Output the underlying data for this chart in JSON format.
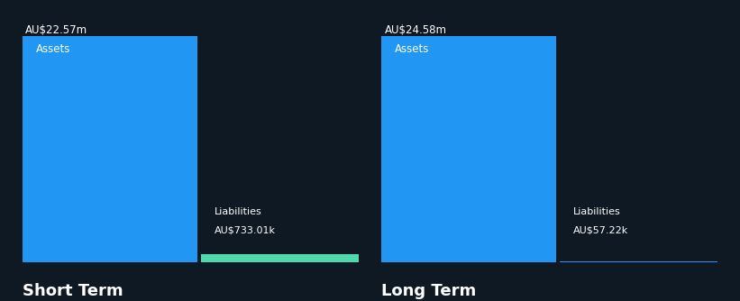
{
  "background_color": "#0f1923",
  "text_color": "#ffffff",
  "sections": [
    {
      "label": "Short Term",
      "assets_value": 22.57,
      "assets_label": "AU$22.57m",
      "assets_color": "#2196F3",
      "liabilities_value": 0.73301,
      "liabilities_label": "AU$733.01k",
      "liabilities_color": "#4dd9ac"
    },
    {
      "label": "Long Term",
      "assets_value": 24.58,
      "assets_label": "AU$24.58m",
      "assets_color": "#2196F3",
      "liabilities_value": 0.05722,
      "liabilities_label": "AU$57.22k",
      "liabilities_color": "#2196F3"
    }
  ]
}
